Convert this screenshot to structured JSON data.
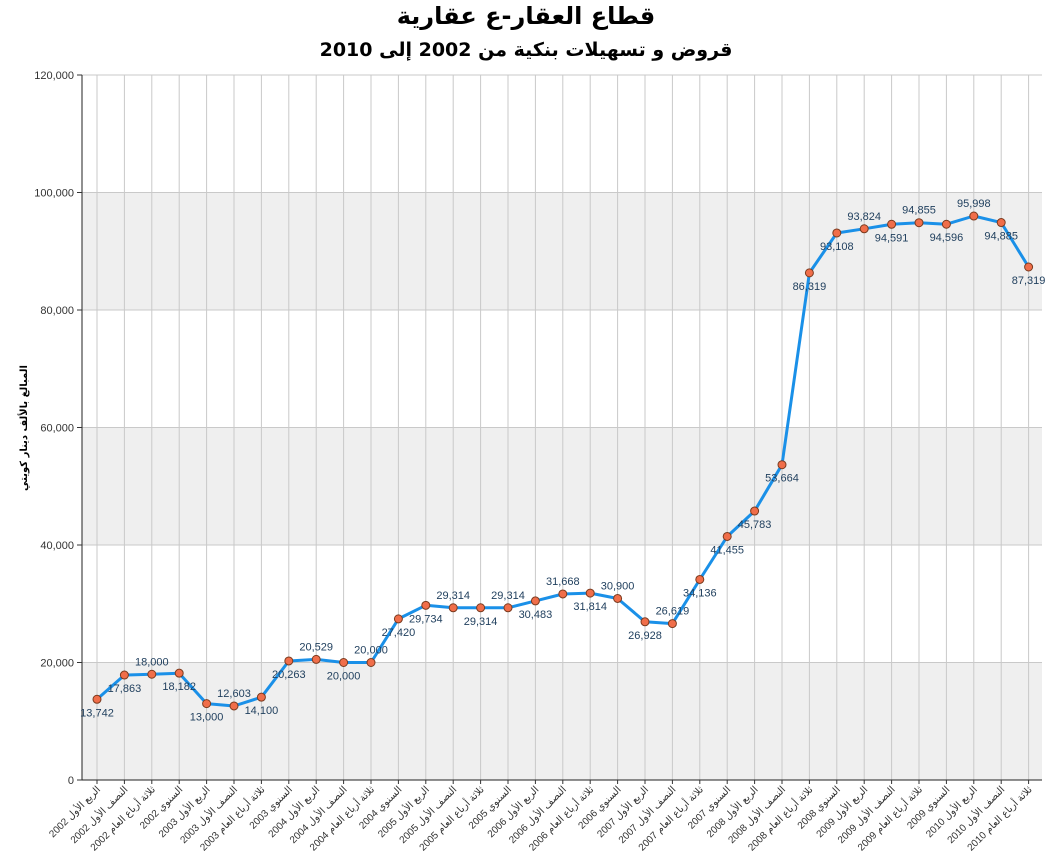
{
  "chart_data": {
    "type": "line",
    "title": "قطاع العقار-ع عقارية",
    "subtitle": "قروض و تسهيلات بنكية من 2002 إلى 2010",
    "xlabel": "",
    "ylabel": "المبالغ بالألف دينار كويتي",
    "ylim": [
      0,
      120000
    ],
    "yticks": [
      "0",
      "20,000",
      "40,000",
      "60,000",
      "80,000",
      "100,000",
      "120,000"
    ],
    "ytick_values": [
      0,
      20000,
      40000,
      60000,
      80000,
      100000,
      120000
    ],
    "grid": true,
    "line_color": "#1a90e8",
    "marker_color": "#f06e4a",
    "band_color": "#efefef",
    "categories": [
      "الربع الأول 2002",
      "النصف الأول 2002",
      "ثلاثة أرباع العام 2002",
      "السنوي 2002",
      "الربع الأول 2003",
      "النصف الأول 2003",
      "ثلاثة أرباع العام 2003",
      "السنوي 2003",
      "الربع الأول 2004",
      "النصف الأول 2004",
      "ثلاثة أرباع العام 2004",
      "السنوي 2004",
      "الربع الأول 2005",
      "النصف الأول 2005",
      "ثلاثة أرباع العام 2005",
      "السنوي 2005",
      "الربع الأول 2006",
      "النصف الأول 2006",
      "ثلاثة أرباع العام 2006",
      "السنوي 2006",
      "الربع الأول 2007",
      "النصف الأول 2007",
      "ثلاثة أرباع العام 2007",
      "السنوي 2007",
      "الربع الأول 2008",
      "النصف الأول 2008",
      "ثلاثة أرباع العام 2008",
      "السنوي 2008",
      "الربع الأول 2009",
      "النصف الأول 2009",
      "ثلاثة أرباع العام 2009",
      "السنوي 2009",
      "الربع الأول 2010",
      "النصف الأول 2010",
      "ثلاثة أرباع العام 2010"
    ],
    "values": [
      13742,
      17863,
      18000,
      18182,
      13000,
      12603,
      14100,
      20263,
      20529,
      20000,
      20000,
      27420,
      29734,
      29314,
      29314,
      29314,
      30483,
      31668,
      31814,
      30900,
      26928,
      26619,
      34136,
      41455,
      45783,
      53664,
      86319,
      93108,
      93824,
      94591,
      94855,
      94596,
      95998,
      94885,
      87319
    ],
    "data_labels": [
      "13,742",
      "17,863",
      "18,000",
      "18,182",
      "13,000",
      "12,603",
      "14,100",
      "20,263",
      "20,529",
      "20,000",
      "20,000",
      "27,420",
      "29,734",
      "29,314",
      "29,314",
      "29,314",
      "30,483",
      "31,668",
      "31,814",
      "30,900",
      "26,928",
      "26,619",
      "34,136",
      "41,455",
      "45,783",
      "53,664",
      "86,319",
      "93,108",
      "93,824",
      "94,591",
      "94,855",
      "94,596",
      "95,998",
      "94,885",
      "87,319"
    ],
    "label_positions": [
      "below",
      "below",
      "above",
      "below",
      "below",
      "above",
      "below",
      "below",
      "above",
      "below",
      "above",
      "below",
      "below",
      "above",
      "below",
      "above",
      "below",
      "above",
      "below",
      "above",
      "below",
      "above",
      "below",
      "below",
      "below",
      "below",
      "below",
      "below",
      "above",
      "below",
      "above",
      "below",
      "above",
      "below",
      "below"
    ]
  }
}
